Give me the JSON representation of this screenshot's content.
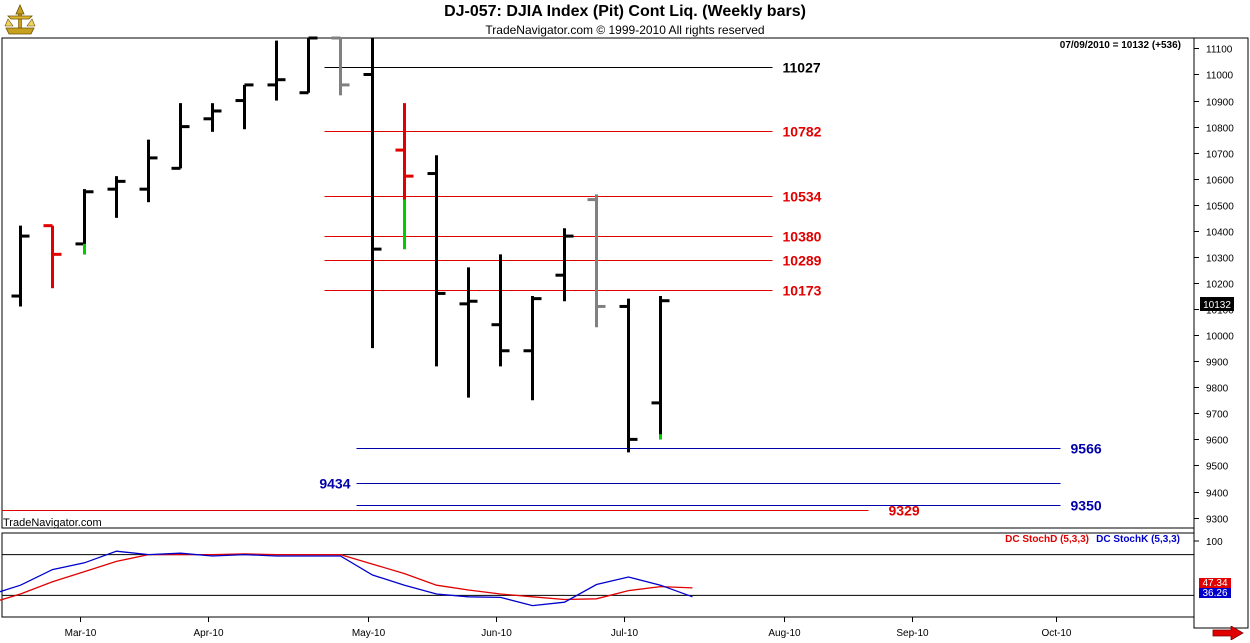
{
  "header": {
    "title": "DJ-057:  DJIA Index (Pit) Cont Liq.  (Weekly bars)",
    "subtitle": "TradeNavigator.com © 1999-2010 All rights reserved",
    "last_info": "07/09/2010 = 10132 (+536)",
    "watermark": "TradeNavigator.com",
    "logo_icon": "trade-navigator-logo-icon",
    "scroll_icon": "right-arrow-icon"
  },
  "chart_data": [
    {
      "type": "bar",
      "subtype": "ohlc",
      "x_labels": [
        "Mar-10",
        "Apr-10",
        "May-10",
        "Jun-10",
        "Jul-10",
        "Aug-10",
        "Sep-10",
        "Oct-10"
      ],
      "y_ticks": [
        9300,
        9400,
        9500,
        9600,
        9700,
        9800,
        9900,
        10000,
        10100,
        10200,
        10300,
        10400,
        10500,
        10600,
        10700,
        10800,
        10900,
        11000,
        11100
      ],
      "ylim": [
        9260,
        11140
      ],
      "last_price": "10132",
      "bars": [
        {
          "week": 1,
          "open": 10150,
          "high": 10420,
          "low": 10110,
          "close": 10380,
          "color": "#000000"
        },
        {
          "week": 2,
          "open": 10420,
          "high": 10420,
          "low": 10180,
          "close": 10310,
          "color": "#e00000"
        },
        {
          "week": 3,
          "open": 10350,
          "high": 10560,
          "low": 10310,
          "close": 10550,
          "color": "#000000",
          "tail_color": "#00cc00",
          "tail_from": 10350,
          "tail_to": 10310
        },
        {
          "week": 4,
          "open": 10560,
          "high": 10610,
          "low": 10450,
          "close": 10590,
          "color": "#000000"
        },
        {
          "week": 5,
          "open": 10560,
          "high": 10750,
          "low": 10510,
          "close": 10680,
          "color": "#000000"
        },
        {
          "week": 6,
          "open": 10640,
          "high": 10890,
          "low": 10640,
          "close": 10800,
          "color": "#000000"
        },
        {
          "week": 7,
          "open": 10830,
          "high": 10890,
          "low": 10780,
          "close": 10860,
          "color": "#000000"
        },
        {
          "week": 8,
          "open": 10900,
          "high": 10960,
          "low": 10790,
          "close": 10960,
          "color": "#000000"
        },
        {
          "week": 9,
          "open": 10960,
          "high": 11130,
          "low": 10900,
          "close": 10980,
          "color": "#000000"
        },
        {
          "week": 10,
          "open": 10930,
          "high": 11140,
          "low": 10930,
          "close": 11140,
          "color": "#000000"
        },
        {
          "week": 11,
          "open": 11140,
          "high": 11140,
          "low": 10920,
          "close": 10960,
          "color": "#808080"
        },
        {
          "week": 12,
          "open": 11000,
          "high": 11140,
          "low": 9950,
          "close": 10330,
          "color": "#000000"
        },
        {
          "week": 13,
          "open": 10710,
          "high": 10890,
          "low": 10330,
          "close": 10610,
          "color": "#e00000",
          "tail_color": "#00cc00",
          "tail_from": 10520,
          "tail_to": 10330
        },
        {
          "week": 14,
          "open": 10620,
          "high": 10690,
          "low": 9880,
          "close": 10160,
          "color": "#000000"
        },
        {
          "week": 15,
          "open": 10120,
          "high": 10260,
          "low": 9760,
          "close": 10130,
          "color": "#000000"
        },
        {
          "week": 16,
          "open": 10040,
          "high": 10310,
          "low": 9880,
          "close": 9940,
          "color": "#000000"
        },
        {
          "week": 17,
          "open": 9940,
          "high": 10150,
          "low": 9750,
          "close": 10140,
          "color": "#000000"
        },
        {
          "week": 18,
          "open": 10230,
          "high": 10410,
          "low": 10130,
          "close": 10380,
          "color": "#000000"
        },
        {
          "week": 19,
          "open": 10520,
          "high": 10540,
          "low": 10030,
          "close": 10110,
          "color": "#808080"
        },
        {
          "week": 20,
          "open": 10110,
          "high": 10140,
          "low": 9550,
          "close": 9600,
          "color": "#000000"
        },
        {
          "week": 21,
          "open": 9740,
          "high": 10150,
          "low": 9600,
          "close": 10132,
          "color": "#000000",
          "tail_color": "#00cc00",
          "tail_from": 9620,
          "tail_to": 9600
        }
      ],
      "levels": [
        {
          "value": 11027,
          "label": "11027",
          "color": "#000000",
          "x_from_week": 11,
          "x_to_week": 24.5,
          "label_side": "right-short"
        },
        {
          "value": 10782,
          "label": "10782",
          "color": "#e00000",
          "x_from_week": 11,
          "x_to_week": 24.5,
          "label_side": "right-short"
        },
        {
          "value": 10534,
          "label": "10534",
          "color": "#e00000",
          "x_from_week": 11,
          "x_to_week": 24.5,
          "label_side": "right-short"
        },
        {
          "value": 10380,
          "label": "10380",
          "color": "#e00000",
          "x_from_week": 11,
          "x_to_week": 24.5,
          "label_side": "right-short"
        },
        {
          "value": 10289,
          "label": "10289",
          "color": "#e00000",
          "x_from_week": 11,
          "x_to_week": 24.5,
          "label_side": "right-short"
        },
        {
          "value": 10173,
          "label": "10173",
          "color": "#e00000",
          "x_from_week": 11,
          "x_to_week": 24.5,
          "label_side": "right-short"
        },
        {
          "value": 9566,
          "label": "9566",
          "color": "#0000aa",
          "x_from_week": 12,
          "x_to_week": 33.5,
          "label_side": "right-long"
        },
        {
          "value": 9434,
          "label": "9434",
          "color": "#0000aa",
          "x_from_week": 12,
          "x_to_week": 33.5,
          "label_side": "left"
        },
        {
          "value": 9350,
          "label": "9350",
          "color": "#0000aa",
          "x_from_week": 12,
          "x_to_week": 33.5,
          "label_side": "right-long"
        },
        {
          "value": 9329,
          "label": "9329",
          "color": "#e00000",
          "x_from_week": -0.5,
          "x_to_week": 27.5,
          "label_side": "right-mid"
        }
      ]
    },
    {
      "type": "line",
      "series": [
        {
          "name": "DC StochD (5,3,3)",
          "color": "#e00000",
          "values": [
            8,
            22,
            40,
            55,
            70,
            80,
            80,
            80,
            81,
            80,
            80,
            80,
            66,
            52,
            35,
            28,
            22,
            18,
            14,
            15,
            27,
            33,
            31
          ]
        },
        {
          "name": "DC StochK (5,3,3)",
          "color": "#0000cc",
          "values": [
            20,
            35,
            58,
            68,
            85,
            80,
            82,
            78,
            80,
            78,
            78,
            78,
            50,
            35,
            22,
            18,
            17,
            5,
            10,
            36,
            47,
            35,
            18
          ]
        }
      ],
      "ylim": [
        0,
        100
      ],
      "y_ticks": [
        100
      ],
      "ref_lines": [
        80,
        20
      ],
      "last_values": [
        "47.34",
        "36.26"
      ]
    }
  ]
}
